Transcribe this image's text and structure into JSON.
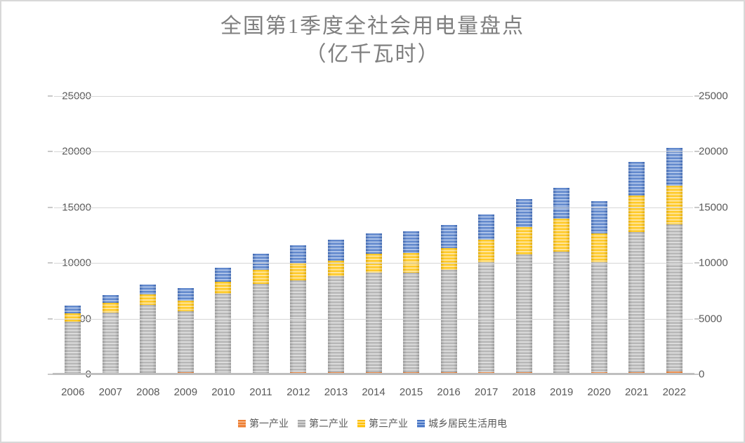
{
  "title": {
    "line1": "全国第1季度全社会用电量盘点",
    "line2": "（亿千瓦时）"
  },
  "axes": {
    "yticks": [
      0,
      5000,
      10000,
      15000,
      20000,
      25000
    ],
    "ymax": 25000
  },
  "chart_data": {
    "type": "bar",
    "stacked": true,
    "title": "全国第1季度全社会用电量盘点（亿千瓦时）",
    "ylabel": "亿千瓦时",
    "ylim": [
      0,
      25000
    ],
    "yticks": [
      0,
      5000,
      10000,
      15000,
      20000,
      25000
    ],
    "grid": true,
    "legend_position": "bottom",
    "dual_y_axis_labels": true,
    "categories": [
      "2006",
      "2007",
      "2008",
      "2009",
      "2010",
      "2011",
      "2012",
      "2013",
      "2014",
      "2015",
      "2016",
      "2017",
      "2018",
      "2019",
      "2020",
      "2021",
      "2022"
    ],
    "series": [
      {
        "name": "第一产业",
        "color": "#ED7D31",
        "stripe": "#F5B183",
        "values": [
          100,
          110,
          160,
          200,
          140,
          160,
          200,
          200,
          180,
          180,
          200,
          220,
          180,
          160,
          200,
          220,
          260
        ]
      },
      {
        "name": "第二产业",
        "color": "#A9A9A9",
        "stripe": "#D5D5D5",
        "values": [
          4610,
          5440,
          6080,
          5490,
          7080,
          7970,
          8240,
          8600,
          8980,
          8930,
          9160,
          9880,
          10610,
          10840,
          9860,
          12570,
          13200
        ]
      },
      {
        "name": "第三产业",
        "color": "#FFC000",
        "stripe": "#FFE089",
        "values": [
          740,
          880,
          920,
          940,
          1110,
          1230,
          1550,
          1410,
          1680,
          1810,
          1950,
          2000,
          2460,
          2980,
          2620,
          3290,
          3460
        ]
      },
      {
        "name": "城乡居民生活用电",
        "color": "#4472C4",
        "stripe": "#9DB7E4",
        "values": [
          710,
          690,
          910,
          1110,
          1260,
          1450,
          1570,
          1850,
          1830,
          1910,
          2120,
          2270,
          2520,
          2790,
          2880,
          3000,
          3420
        ]
      }
    ],
    "totals": [
      6160,
      7120,
      8070,
      7740,
      9590,
      10810,
      11560,
      12060,
      12670,
      12830,
      13430,
      14360,
      15770,
      16770,
      15560,
      19080,
      20340
    ]
  },
  "style_colors": {
    "title_text": "#7F7F7F",
    "axis_text": "#595959",
    "gridline": "#D6D6D6",
    "axis_line": "#BFBFBF",
    "page_border": "#D8D8D8"
  }
}
